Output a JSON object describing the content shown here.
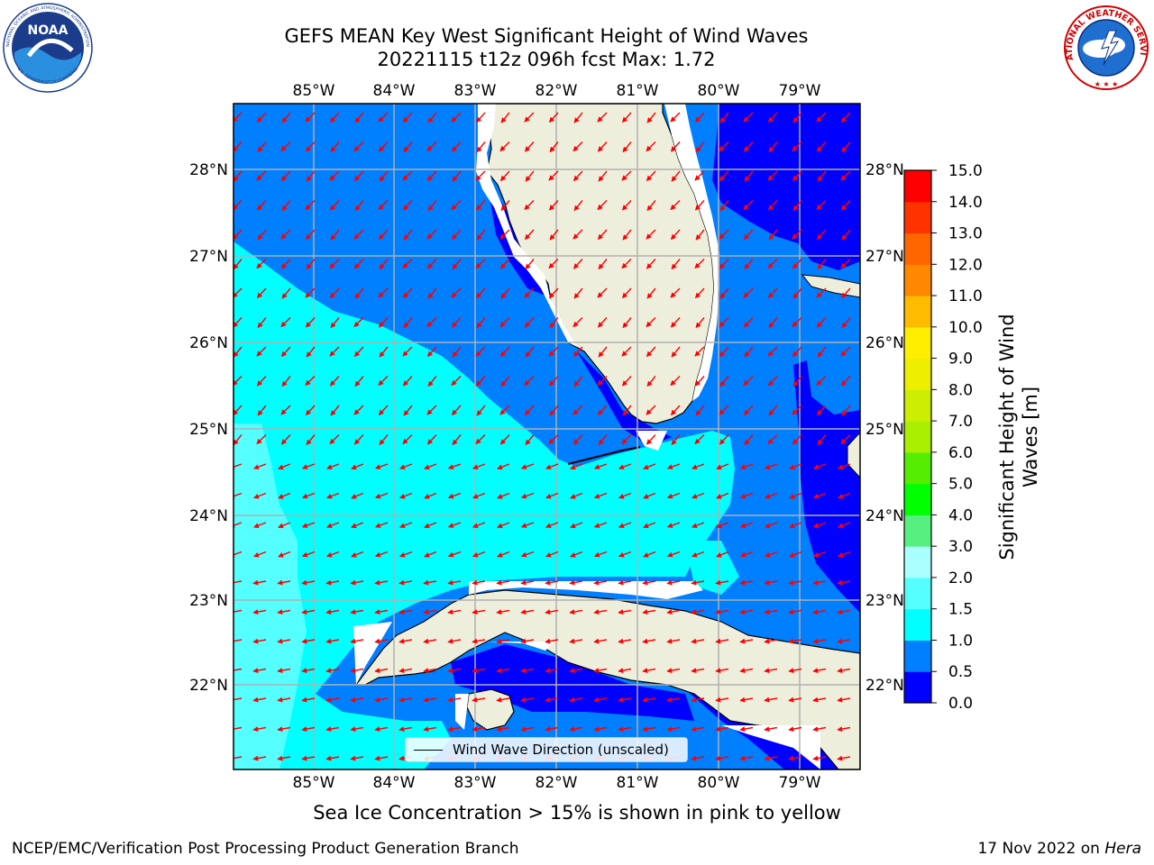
{
  "header": {
    "title_line1": "GEFS MEAN Key West Significant Height of Wind Waves",
    "title_line2": "20221115 t12z 096h fcst   Max: 1.72"
  },
  "logos": {
    "noaa_text": "NOAA",
    "noaa_ring_top": "NATIONAL OCEANIC AND ATMOSPHERIC ADMINISTRATION",
    "noaa_ring_bottom": "U.S. DEPARTMENT OF COMMERCE",
    "nws_text": "NATIONAL WEATHER SERVICE"
  },
  "map": {
    "lon_labels": [
      "85°W",
      "84°W",
      "83°W",
      "82°W",
      "81°W",
      "80°W",
      "79°W"
    ],
    "lat_labels": [
      "28°N",
      "27°N",
      "26°N",
      "25°N",
      "24°N",
      "23°N",
      "22°N"
    ],
    "legend_label": "Wind Wave Direction (unscaled)",
    "arrow_color": "#ff0000",
    "land_color": "#eeeedd"
  },
  "colorbar": {
    "label_line1": "Significant Height of Wind",
    "label_line2": "Waves [m]",
    "ticks": [
      "0.0",
      "0.5",
      "1.0",
      "1.5",
      "2.0",
      "3.0",
      "4.0",
      "5.0",
      "6.0",
      "7.0",
      "8.0",
      "9.0",
      "10.0",
      "11.0",
      "12.0",
      "13.0",
      "14.0",
      "15.0"
    ],
    "colors": [
      "#0000ff",
      "#007fff",
      "#00ffff",
      "#55ffff",
      "#aaffff",
      "#55f07f",
      "#00ff00",
      "#55ee00",
      "#aaee00",
      "#ccee00",
      "#eeee00",
      "#ffee00",
      "#ffbb00",
      "#ff8800",
      "#ff6600",
      "#ff3300",
      "#ff0000"
    ]
  },
  "subtitle": "Sea Ice Concentration > 15% is shown in pink to yellow",
  "footer": {
    "left": "NCEP/EMC/Verification Post Processing Product Generation Branch",
    "date": "17 Nov 2022 on ",
    "host": "Hera"
  }
}
